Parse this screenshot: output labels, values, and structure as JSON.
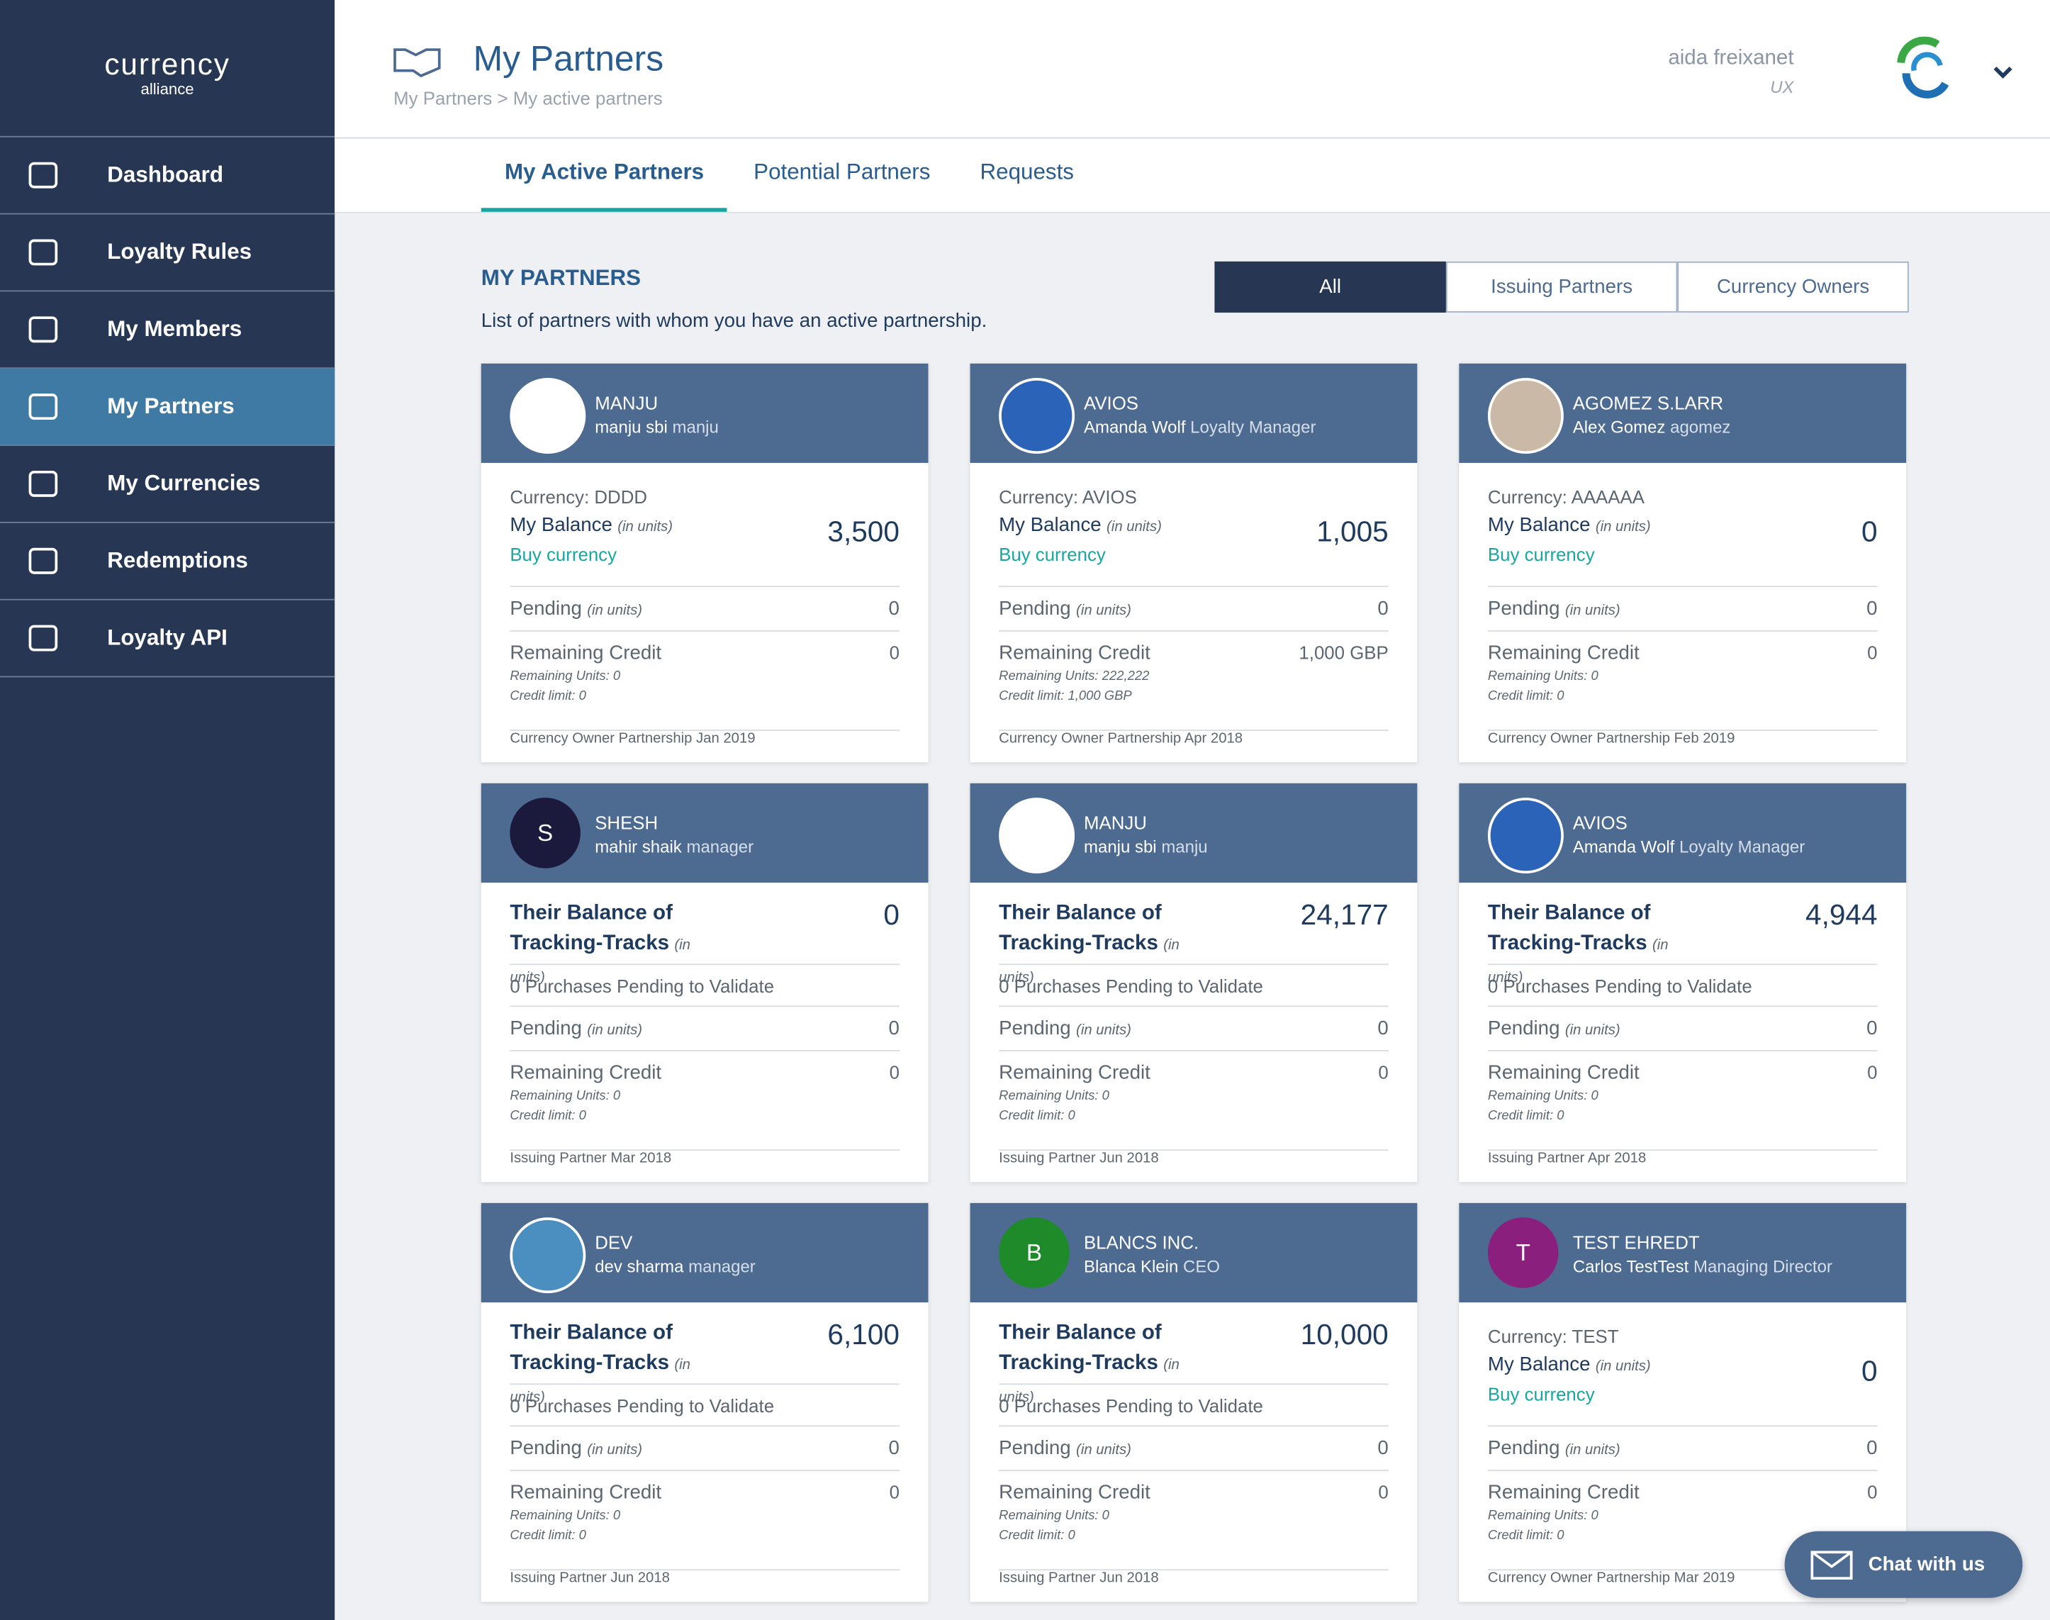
{
  "sidebar": {
    "brand": "currency",
    "brand_sub": "alliance",
    "nav": [
      "Dashboard",
      "Loyalty Rules",
      "My Members",
      "My Partners",
      "My Currencies",
      "Redemptions",
      "Loyalty API"
    ]
  },
  "header": {
    "title": "My Partners",
    "breadcrumb": "My Partners > My active partners",
    "user_name": "aida freixanet",
    "user_role": "UX"
  },
  "tabs": [
    "My Active Partners",
    "Potential Partners",
    "Requests"
  ],
  "section": {
    "title": "MY PARTNERS",
    "description": "List of partners with whom you have an active partnership.",
    "filters": [
      "All",
      "Issuing Partners",
      "Currency Owners"
    ]
  },
  "cards": [
    {
      "name": "MANJU",
      "contact": "manju sbi",
      "role": "manju",
      "avatar_color": "#ffffff",
      "currency": "Currency: DDDD",
      "balance_label": "My Balance",
      "units": "(in units)",
      "balance": "3,500",
      "buy": "Buy currency",
      "pending_label": "Pending",
      "pending_units": "(in units)",
      "pending": "0",
      "credit_label": "Remaining Credit",
      "credit": "0",
      "remaining_units": "Remaining Units: 0",
      "credit_limit": "Credit limit: 0",
      "footer": "Currency Owner Partnership Jan 2019"
    },
    {
      "name": "AVIOS",
      "contact": "Amanda Wolf",
      "role": "Loyalty Manager",
      "avatar_color": "#2a63b8",
      "currency": "Currency: AVIOS",
      "balance_label": "My Balance",
      "units": "(in units)",
      "balance": "1,005",
      "buy": "Buy currency",
      "pending_label": "Pending",
      "pending_units": "(in units)",
      "pending": "0",
      "credit_label": "Remaining Credit",
      "credit": "1,000 GBP",
      "remaining_units": "Remaining Units: 222,222",
      "credit_limit": "Credit limit: 1,000 GBP",
      "footer": "Currency Owner Partnership Apr 2018"
    },
    {
      "name": "AGOMEZ S.LARR",
      "contact": "Alex Gomez",
      "role": "agomez",
      "avatar_color": "#c9b9a6",
      "currency": "Currency: AAAAAA",
      "balance_label": "My Balance",
      "units": "(in units)",
      "balance": "0",
      "buy": "Buy currency",
      "pending_label": "Pending",
      "pending_units": "(in units)",
      "pending": "0",
      "credit_label": "Remaining Credit",
      "credit": "0",
      "remaining_units": "Remaining Units: 0",
      "credit_limit": "Credit limit: 0",
      "footer": "Currency Owner Partnership Feb 2019"
    },
    {
      "name": "SHESH",
      "contact": "mahir shaik",
      "role": "manager",
      "avatar_color": "#1b1a3c",
      "avatar_letter": "S",
      "balance_label": "Their Balance of Tracking-Tracks",
      "units": "(in units)",
      "balance": "0",
      "purchases": "0 Purchases Pending to Validate",
      "pending_label": "Pending",
      "pending_units": "(in units)",
      "pending": "0",
      "credit_label": "Remaining Credit",
      "credit": "0",
      "remaining_units": "Remaining Units: 0",
      "credit_limit": "Credit limit: 0",
      "footer": "Issuing Partner Mar 2018"
    },
    {
      "name": "MANJU",
      "contact": "manju sbi",
      "role": "manju",
      "avatar_color": "#ffffff",
      "balance_label": "Their Balance of Tracking-Tracks",
      "units": "(in units)",
      "balance": "24,177",
      "purchases": "0 Purchases Pending to Validate",
      "pending_label": "Pending",
      "pending_units": "(in units)",
      "pending": "0",
      "credit_label": "Remaining Credit",
      "credit": "0",
      "remaining_units": "Remaining Units: 0",
      "credit_limit": "Credit limit: 0",
      "footer": "Issuing Partner Jun 2018"
    },
    {
      "name": "AVIOS",
      "contact": "Amanda Wolf",
      "role": "Loyalty Manager",
      "avatar_color": "#2a63b8",
      "balance_label": "Their Balance of Tracking-Tracks",
      "units": "(in units)",
      "balance": "4,944",
      "purchases": "0 Purchases Pending to Validate",
      "pending_label": "Pending",
      "pending_units": "(in units)",
      "pending": "0",
      "credit_label": "Remaining Credit",
      "credit": "0",
      "remaining_units": "Remaining Units: 0",
      "credit_limit": "Credit limit: 0",
      "footer": "Issuing Partner Apr 2018"
    },
    {
      "name": "DEV",
      "contact": "dev sharma",
      "role": "manager",
      "avatar_color": "#4a8fc0",
      "balance_label": "Their Balance of Tracking-Tracks",
      "units": "(in units)",
      "balance": "6,100",
      "purchases": "0 Purchases Pending to Validate",
      "pending_label": "Pending",
      "pending_units": "(in units)",
      "pending": "0",
      "credit_label": "Remaining Credit",
      "credit": "0",
      "remaining_units": "Remaining Units: 0",
      "credit_limit": "Credit limit: 0",
      "footer": "Issuing Partner Jun 2018"
    },
    {
      "name": "BLANCS INC.",
      "contact": "Blanca Klein",
      "role": "CEO",
      "avatar_color": "#1f8a2a",
      "avatar_letter": "B",
      "balance_label": "Their Balance of Tracking-Tracks",
      "units": "(in units)",
      "balance": "10,000",
      "purchases": "0 Purchases Pending to Validate",
      "pending_label": "Pending",
      "pending_units": "(in units)",
      "pending": "0",
      "credit_label": "Remaining Credit",
      "credit": "0",
      "remaining_units": "Remaining Units: 0",
      "credit_limit": "Credit limit: 0",
      "footer": "Issuing Partner Jun 2018"
    },
    {
      "name": "TEST EHREDT",
      "contact": "Carlos TestTest",
      "role": "Managing Director",
      "avatar_color": "#8a1f7e",
      "avatar_letter": "T",
      "currency": "Currency: TEST",
      "balance_label": "My Balance",
      "units": "(in units)",
      "balance": "0",
      "buy": "Buy currency",
      "pending_label": "Pending",
      "pending_units": "(in units)",
      "pending": "0",
      "credit_label": "Remaining Credit",
      "credit": "0",
      "remaining_units": "Remaining Units: 0",
      "credit_limit": "Credit limit: 0",
      "footer": "Currency Owner Partnership Mar 2019"
    }
  ],
  "chat": "Chat with us"
}
